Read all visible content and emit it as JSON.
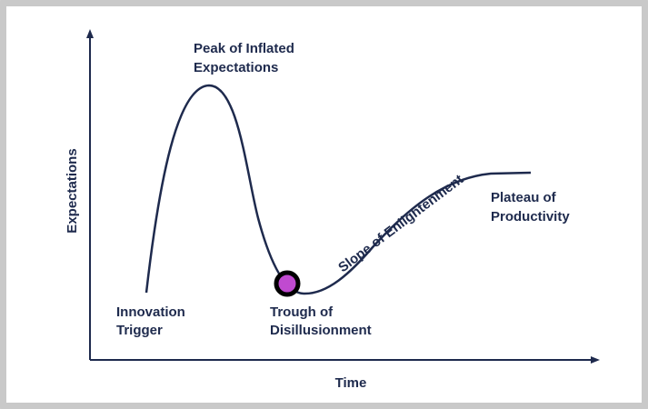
{
  "diagram": {
    "axes": {
      "x_label": "Time",
      "y_label": "Expectations"
    },
    "phases": {
      "innovation_trigger": [
        "Innovation",
        "Trigger"
      ],
      "peak": [
        "Peak of Inflated",
        "Expectations"
      ],
      "trough": [
        "Trough of",
        "Disillusionment"
      ],
      "slope": "Slope of Enlightenment",
      "plateau": [
        "Plateau of",
        "Productivity"
      ]
    },
    "marker": {
      "fill_color": "#c04ad0",
      "stroke_color": "#000000"
    },
    "colors": {
      "curve": "#1e2a4d",
      "axis": "#1e2a4d",
      "text": "#1e2a4d"
    }
  }
}
